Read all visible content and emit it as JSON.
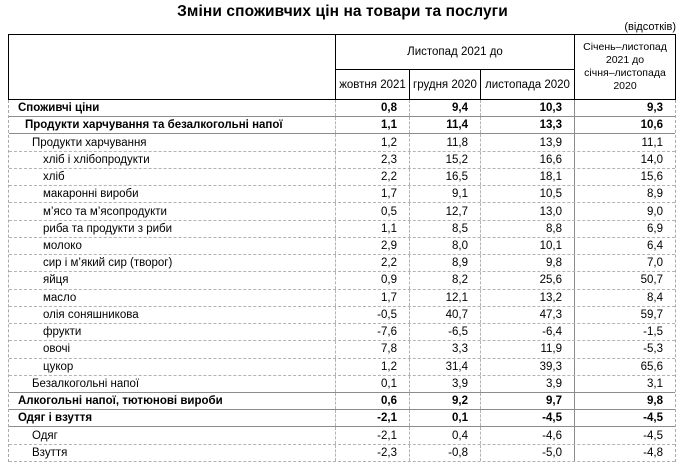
{
  "title": "Зміни споживчих цін на товари та послуги",
  "unit_note": "(відсотків)",
  "table": {
    "col_group_header": "Листопад 2021 до",
    "sub_headers": [
      "жовтня 2021",
      "грудня 2020",
      "листопада 2020"
    ],
    "period_header": "Січень–листопад\n2021 до\nсічня–листопада\n2020",
    "rows": [
      {
        "label": "Споживчі ціни",
        "indent": 0,
        "bold": true,
        "solid_bottom": true,
        "values": [
          "0,8",
          "9,4",
          "10,3",
          "9,3"
        ]
      },
      {
        "label": "Продукти харчування та безалкогольні напої",
        "indent": 1,
        "bold": true,
        "solid_bottom": true,
        "values": [
          "1,1",
          "11,4",
          "13,3",
          "10,6"
        ]
      },
      {
        "label": "Продукти харчування",
        "indent": 2,
        "bold": false,
        "solid_bottom": false,
        "values": [
          "1,2",
          "11,8",
          "13,9",
          "11,1"
        ]
      },
      {
        "label": "хліб і хлібопродукти",
        "indent": 3,
        "bold": false,
        "solid_bottom": false,
        "values": [
          "2,3",
          "15,2",
          "16,6",
          "14,0"
        ]
      },
      {
        "label": "хліб",
        "indent": 3,
        "bold": false,
        "solid_bottom": false,
        "values": [
          "2,2",
          "16,5",
          "18,1",
          "15,6"
        ]
      },
      {
        "label": "макаронні вироби",
        "indent": 3,
        "bold": false,
        "solid_bottom": false,
        "values": [
          "1,7",
          "9,1",
          "10,5",
          "8,9"
        ]
      },
      {
        "label": "м’ясо та м’ясопродукти",
        "indent": 3,
        "bold": false,
        "solid_bottom": false,
        "values": [
          "0,5",
          "12,7",
          "13,0",
          "9,0"
        ]
      },
      {
        "label": "риба та продукти з риби",
        "indent": 3,
        "bold": false,
        "solid_bottom": false,
        "values": [
          "1,1",
          "8,5",
          "8,8",
          "6,9"
        ]
      },
      {
        "label": "молоко",
        "indent": 3,
        "bold": false,
        "solid_bottom": false,
        "values": [
          "2,9",
          "8,0",
          "10,1",
          "6,4"
        ]
      },
      {
        "label": "сир і м’який сир (творог)",
        "indent": 3,
        "bold": false,
        "solid_bottom": false,
        "values": [
          "2,2",
          "8,9",
          "9,8",
          "7,0"
        ]
      },
      {
        "label": "яйця",
        "indent": 3,
        "bold": false,
        "solid_bottom": false,
        "values": [
          "0,9",
          "8,2",
          "25,6",
          "50,7"
        ]
      },
      {
        "label": "масло",
        "indent": 3,
        "bold": false,
        "solid_bottom": false,
        "values": [
          "1,7",
          "12,1",
          "13,2",
          "8,4"
        ]
      },
      {
        "label": "олія соняшникова",
        "indent": 3,
        "bold": false,
        "solid_bottom": false,
        "values": [
          "-0,5",
          "40,7",
          "47,3",
          "59,7"
        ]
      },
      {
        "label": "фрукти",
        "indent": 3,
        "bold": false,
        "solid_bottom": false,
        "values": [
          "-7,6",
          "-6,5",
          "-6,4",
          "-1,5"
        ]
      },
      {
        "label": "овочі",
        "indent": 3,
        "bold": false,
        "solid_bottom": false,
        "values": [
          "7,8",
          "3,3",
          "11,9",
          "-5,3"
        ]
      },
      {
        "label": "цукор",
        "indent": 3,
        "bold": false,
        "solid_bottom": false,
        "values": [
          "1,2",
          "31,4",
          "39,3",
          "65,6"
        ]
      },
      {
        "label": "Безалкогольні напої",
        "indent": 2,
        "bold": false,
        "solid_bottom": true,
        "values": [
          "0,1",
          "3,9",
          "3,9",
          "3,1"
        ]
      },
      {
        "label": "Алкогольні напої, тютюнові вироби",
        "indent": 0,
        "bold": true,
        "solid_bottom": true,
        "values": [
          "0,6",
          "9,2",
          "9,7",
          "9,8"
        ]
      },
      {
        "label": "Одяг і взуття",
        "indent": 0,
        "bold": true,
        "solid_bottom": true,
        "values": [
          "-2,1",
          "0,1",
          "-4,5",
          "-4,5"
        ]
      },
      {
        "label": "Одяг",
        "indent": 2,
        "bold": false,
        "solid_bottom": false,
        "values": [
          "-2,1",
          "0,4",
          "-4,6",
          "-4,5"
        ]
      },
      {
        "label": "Взуття",
        "indent": 2,
        "bold": false,
        "solid_bottom": false,
        "values": [
          "-2,3",
          "-0,8",
          "-5,0",
          "-4,8"
        ]
      }
    ]
  }
}
